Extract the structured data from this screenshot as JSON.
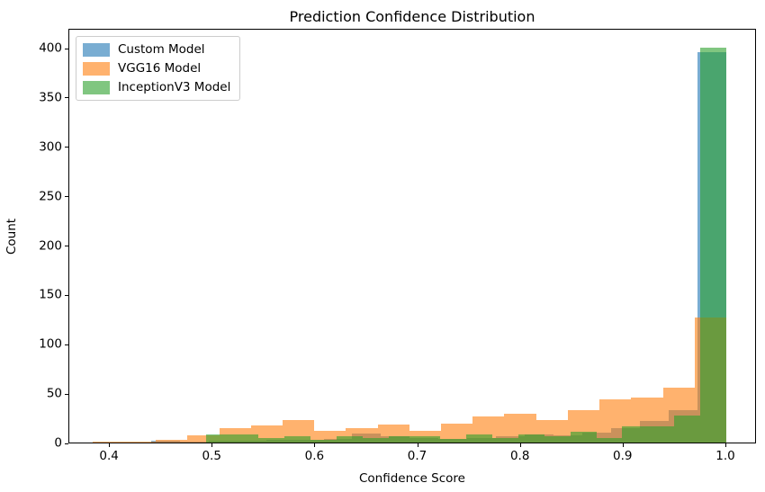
{
  "title": "Prediction Confidence Distribution",
  "xlabel": "Confidence Score",
  "ylabel": "Count",
  "chart_data": {
    "type": "bar",
    "subtype": "overlapping-histogram",
    "title": "Prediction Confidence Distribution",
    "xlabel": "Confidence Score",
    "ylabel": "Count",
    "xlim": [
      0.3605,
      1.0298
    ],
    "ylim": [
      0,
      420
    ],
    "grid": false,
    "legend_position": "upper left",
    "bar_alpha": 0.6,
    "x_ticks": [
      {
        "value": 0.4,
        "label": "0.4"
      },
      {
        "value": 0.5,
        "label": "0.5"
      },
      {
        "value": 0.6,
        "label": "0.6"
      },
      {
        "value": 0.7,
        "label": "0.7"
      },
      {
        "value": 0.8,
        "label": "0.8"
      },
      {
        "value": 0.9,
        "label": "0.9"
      },
      {
        "value": 1.0,
        "label": "1.0"
      }
    ],
    "y_ticks": [
      {
        "value": 0,
        "label": "0"
      },
      {
        "value": 50,
        "label": "50"
      },
      {
        "value": 100,
        "label": "100"
      },
      {
        "value": 150,
        "label": "150"
      },
      {
        "value": 200,
        "label": "200"
      },
      {
        "value": 250,
        "label": "250"
      },
      {
        "value": 300,
        "label": "300"
      },
      {
        "value": 350,
        "label": "350"
      },
      {
        "value": 400,
        "label": "400"
      }
    ],
    "series": [
      {
        "name": "custom-model",
        "label": "Custom Model",
        "color": "#1f77b4",
        "bin_start": 0.44,
        "bin_width": 0.028,
        "counts": [
          2,
          1,
          2,
          2,
          3,
          3,
          4,
          9,
          6,
          5,
          4,
          5,
          6,
          8,
          7,
          10,
          15,
          22,
          33,
          395
        ]
      },
      {
        "name": "vgg16-model",
        "label": "VGG16 Model",
        "color": "#ff7f0e",
        "bin_start": 0.383,
        "bin_width": 0.03085,
        "counts": [
          1,
          1,
          3,
          7,
          15,
          17,
          23,
          12,
          15,
          18,
          12,
          19,
          26,
          29,
          23,
          33,
          44,
          46,
          56,
          127
        ]
      },
      {
        "name": "inceptionv3-model",
        "label": "InceptionV3 Model",
        "color": "#2ca02c",
        "bin_start": 0.494,
        "bin_width": 0.0253,
        "counts": [
          8,
          8,
          5,
          6,
          3,
          6,
          5,
          6,
          6,
          4,
          8,
          5,
          8,
          6,
          11,
          5,
          16,
          16,
          27,
          400
        ]
      }
    ]
  }
}
